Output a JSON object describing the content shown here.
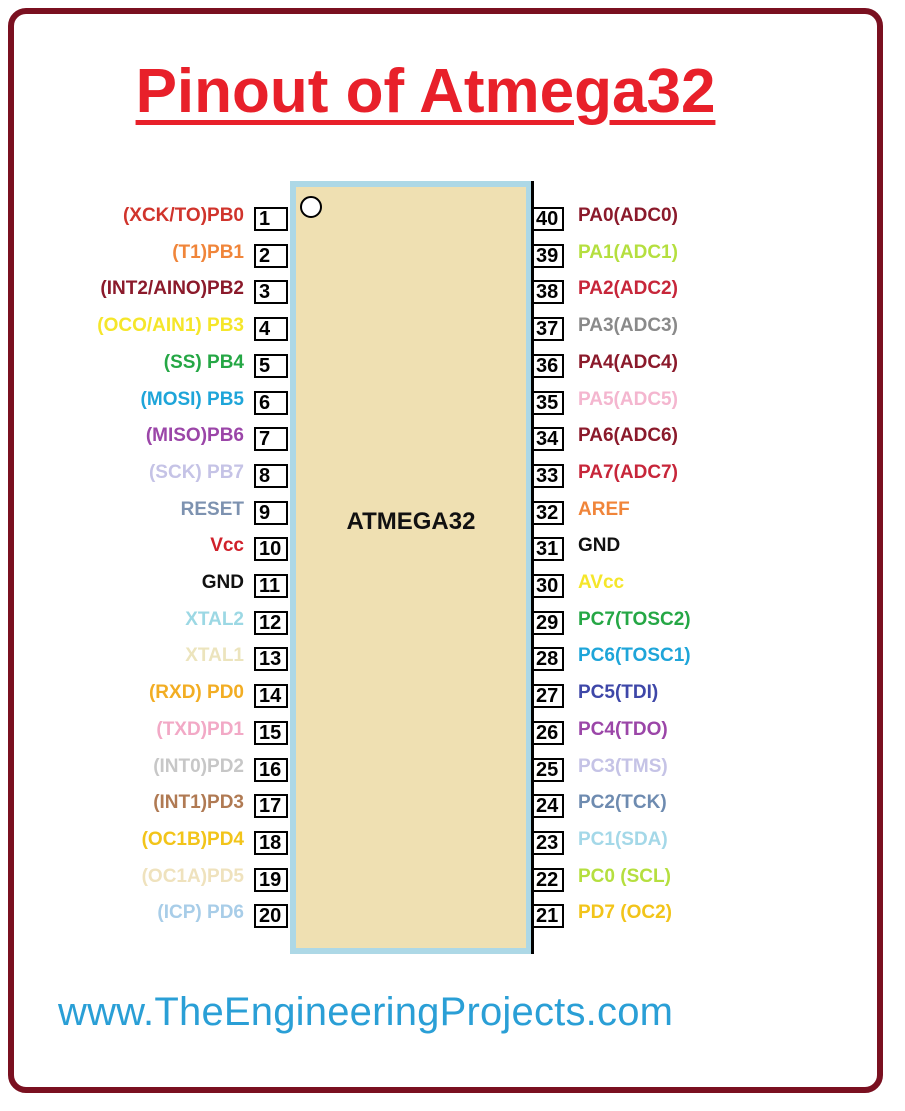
{
  "title": "Pinout of Atmega32",
  "chip_label": "ATMEGA32",
  "website": "www.TheEngineeringProjects.com",
  "left_pins": [
    {
      "num": "1",
      "label": "(XCK/TO)PB0",
      "color": "#d0342c"
    },
    {
      "num": "2",
      "label": "(T1)PB1",
      "color": "#f0853a"
    },
    {
      "num": "3",
      "label": "(INT2/AINO)PB2",
      "color": "#8b1a2b"
    },
    {
      "num": "4",
      "label": "(OCO/AIN1) PB3",
      "color": "#f5e62a"
    },
    {
      "num": "5",
      "label": "(SS) PB4",
      "color": "#25a745"
    },
    {
      "num": "6",
      "label": "(MOSI) PB5",
      "color": "#1ea5d9"
    },
    {
      "num": "7",
      "label": "(MISO)PB6",
      "color": "#9b46a8"
    },
    {
      "num": "8",
      "label": "(SCK) PB7",
      "color": "#c5c3e6"
    },
    {
      "num": "9",
      "label": "RESET",
      "color": "#7d92b0"
    },
    {
      "num": "10",
      "label": "Vcc",
      "color": "#d0202a"
    },
    {
      "num": "11",
      "label": "GND",
      "color": "#111111"
    },
    {
      "num": "12",
      "label": "XTAL2",
      "color": "#9cd8e4"
    },
    {
      "num": "13",
      "label": "XTAL1",
      "color": "#ece4bd"
    },
    {
      "num": "14",
      "label": "(RXD) PD0",
      "color": "#f2ad23"
    },
    {
      "num": "15",
      "label": "(TXD)PD1",
      "color": "#f2a9c6"
    },
    {
      "num": "16",
      "label": "(INT0)PD2",
      "color": "#c7c7c7"
    },
    {
      "num": "17",
      "label": "(INT1)PD3",
      "color": "#b07a53"
    },
    {
      "num": "18",
      "label": "(OC1B)PD4",
      "color": "#f2c41a"
    },
    {
      "num": "19",
      "label": "(OC1A)PD5",
      "color": "#efe2bd"
    },
    {
      "num": "20",
      "label": "(ICP) PD6",
      "color": "#a8cde8"
    }
  ],
  "right_pins": [
    {
      "num": "40",
      "label": "PA0(ADC0)",
      "color": "#8b1a2b"
    },
    {
      "num": "39",
      "label": "PA1(ADC1)",
      "color": "#b5df3f"
    },
    {
      "num": "38",
      "label": "PA2(ADC2)",
      "color": "#c7263a"
    },
    {
      "num": "37",
      "label": "PA3(ADC3)",
      "color": "#8a8a8a"
    },
    {
      "num": "36",
      "label": "PA4(ADC4)",
      "color": "#8b1a2b"
    },
    {
      "num": "35",
      "label": "PA5(ADC5)",
      "color": "#f4b6cf"
    },
    {
      "num": "34",
      "label": "PA6(ADC6)",
      "color": "#8b1a2b"
    },
    {
      "num": "33",
      "label": "PA7(ADC7)",
      "color": "#c7263a"
    },
    {
      "num": "32",
      "label": "AREF",
      "color": "#f0853a"
    },
    {
      "num": "31",
      "label": "GND",
      "color": "#111111"
    },
    {
      "num": "30",
      "label": "AVcc",
      "color": "#f5e62a"
    },
    {
      "num": "29",
      "label": "PC7(TOSC2)",
      "color": "#25a745"
    },
    {
      "num": "28",
      "label": "PC6(TOSC1)",
      "color": "#1ea5d9"
    },
    {
      "num": "27",
      "label": "PC5(TDI)",
      "color": "#3e47a8"
    },
    {
      "num": "26",
      "label": "PC4(TDO)",
      "color": "#9b46a8"
    },
    {
      "num": "25",
      "label": "PC3(TMS)",
      "color": "#c5c3e6"
    },
    {
      "num": "24",
      "label": "PC2(TCK)",
      "color": "#6e8bb0"
    },
    {
      "num": "23",
      "label": "PC1(SDA)",
      "color": "#a4d8e8"
    },
    {
      "num": "22",
      "label": "PC0 (SCL)",
      "color": "#b5df3f"
    },
    {
      "num": "21",
      "label": "PD7 (OC2)",
      "color": "#f2c41a"
    }
  ]
}
